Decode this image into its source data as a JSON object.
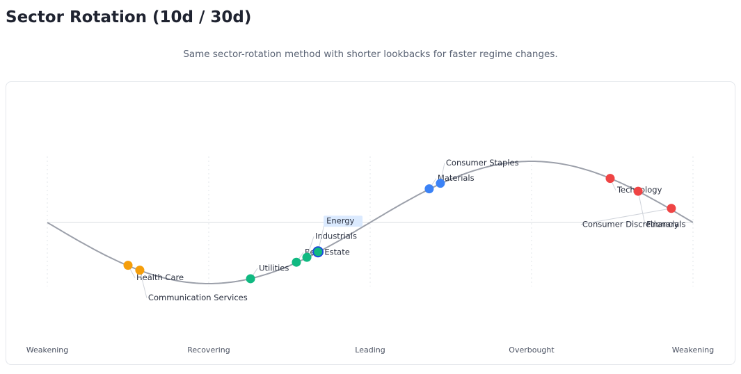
{
  "chart_data": {
    "type": "scatter",
    "title": "Sector Rotation (10d / 30d)",
    "subtitle": "Same sector-rotation method with shorter lookbacks for faster regime changes.",
    "xlim": [
      0,
      4
    ],
    "ylim": [
      -1.6,
      1.6
    ],
    "xticks": [
      {
        "value": 0,
        "label": "Weakening"
      },
      {
        "value": 1,
        "label": "Recovering"
      },
      {
        "value": 2,
        "label": "Leading"
      },
      {
        "value": 3,
        "label": "Overbought"
      },
      {
        "value": 4,
        "label": "Weakening"
      }
    ],
    "yticks": [
      0
    ],
    "highlighted": "Energy",
    "points": [
      {
        "name": "Health Care",
        "color": "#f59e0b",
        "x": 0.5,
        "y": -0.7
      },
      {
        "name": "Communication Services",
        "color": "#f59e0b",
        "x": 0.573,
        "y": -0.78
      },
      {
        "name": "Utilities",
        "color": "#10b981",
        "x": 1.259,
        "y": -0.92
      },
      {
        "name": "Real Estate",
        "color": "#10b981",
        "x": 1.543,
        "y": -0.65
      },
      {
        "name": "Industrials",
        "color": "#10b981",
        "x": 1.608,
        "y": -0.57
      },
      {
        "name": "Energy",
        "color": "#10b981",
        "x": 1.677,
        "y": -0.48
      },
      {
        "name": "Materials",
        "color": "#3b82f6",
        "x": 2.366,
        "y": 0.55
      },
      {
        "name": "Consumer Staples",
        "color": "#3b82f6",
        "x": 2.435,
        "y": 0.64
      },
      {
        "name": "Technology",
        "color": "#ef4444",
        "x": 3.487,
        "y": 0.72
      },
      {
        "name": "Financials",
        "color": "#ef4444",
        "x": 3.66,
        "y": 0.51
      },
      {
        "name": "Consumer Discretionary",
        "color": "#ef4444",
        "x": 3.866,
        "y": 0.23
      }
    ]
  }
}
